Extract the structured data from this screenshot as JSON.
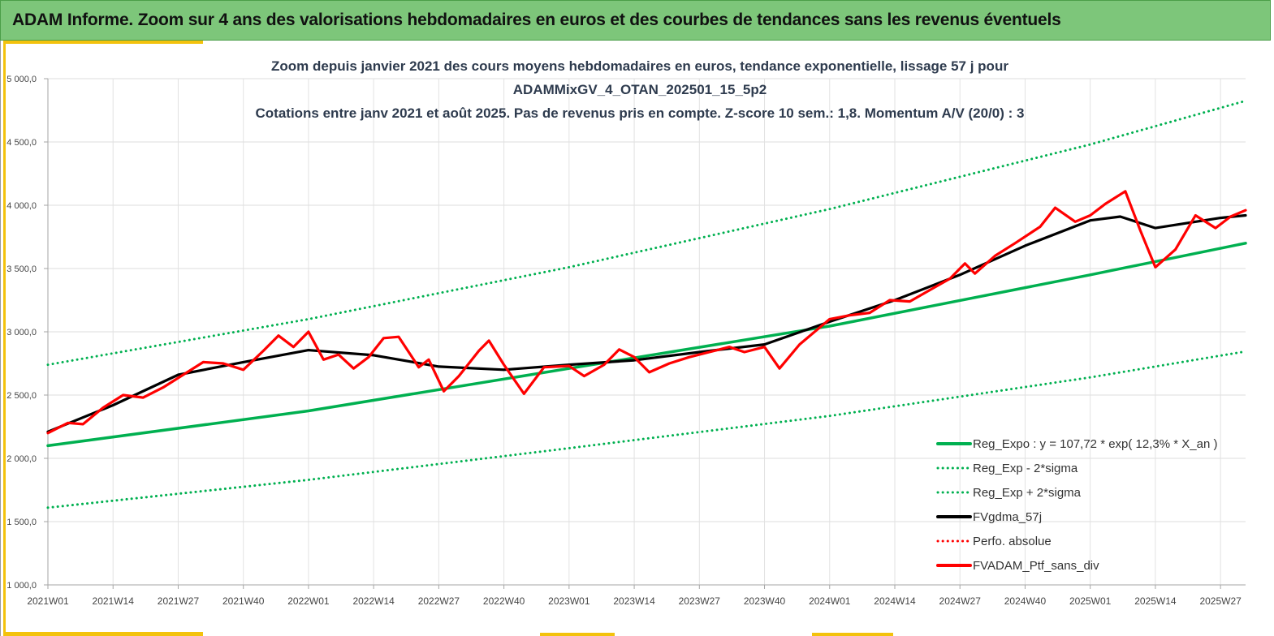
{
  "header": {
    "title": "ADAM Informe. Zoom sur 4 ans des valorisations hebdomadaires en euros et des courbes de tendances sans les revenus éventuels"
  },
  "chart_data": {
    "type": "line",
    "title_lines": [
      "Zoom depuis janvier 2021 des cours moyens hebdomadaires  en euros, tendance exponentielle, lissage 57 j pour",
      "ADAMMixGV_4_OTAN_202501_15_5p2",
      "Cotations  entre janv 2021 et août 2025. Pas de revenus pris en compte. Z-score 10 sem.: 1,8. Momentum A/V (20/0) : 3"
    ],
    "ylim": [
      1000,
      5000
    ],
    "y_ticks": [
      {
        "value": 1000,
        "label": "1 000,0"
      },
      {
        "value": 1500,
        "label": "1 500,0"
      },
      {
        "value": 2000,
        "label": "2 000,0"
      },
      {
        "value": 2500,
        "label": "2 500,0"
      },
      {
        "value": 3000,
        "label": "3 000,0"
      },
      {
        "value": 3500,
        "label": "3 500,0"
      },
      {
        "value": 4000,
        "label": "4 000,0"
      },
      {
        "value": 4500,
        "label": "4 500,0"
      },
      {
        "value": 5000,
        "label": "5 000,0"
      }
    ],
    "x_ticks": [
      "2021W01",
      "2021W14",
      "2021W27",
      "2021W40",
      "2022W01",
      "2022W14",
      "2022W27",
      "2022W40",
      "2023W01",
      "2023W14",
      "2023W27",
      "2023W40",
      "2024W01",
      "2024W14",
      "2024W27",
      "2024W40",
      "2025W01",
      "2025W14",
      "2025W27"
    ],
    "grid": true,
    "legend_position": "bottom-right",
    "series": [
      {
        "name": "Reg_Expo : y = 107,72 * exp( 12,3% *  X_an )",
        "color": "#00b050",
        "style": "solid",
        "points": [
          [
            "2021W01",
            2100
          ],
          [
            "2022W01",
            2375
          ],
          [
            "2023W01",
            2710
          ],
          [
            "2024W01",
            3045
          ],
          [
            "2025W01",
            3450
          ],
          [
            "2025W32",
            3700
          ]
        ]
      },
      {
        "name": "Reg_Exp - 2*sigma",
        "color": "#00b050",
        "style": "dotted",
        "points": [
          [
            "2021W01",
            1610
          ],
          [
            "2022W01",
            1830
          ],
          [
            "2023W01",
            2080
          ],
          [
            "2024W01",
            2335
          ],
          [
            "2025W01",
            2640
          ],
          [
            "2025W32",
            2845
          ]
        ]
      },
      {
        "name": "Reg_Exp + 2*sigma",
        "color": "#00b050",
        "style": "dotted",
        "points": [
          [
            "2021W01",
            2740
          ],
          [
            "2022W01",
            3100
          ],
          [
            "2023W01",
            3510
          ],
          [
            "2024W01",
            3970
          ],
          [
            "2025W01",
            4480
          ],
          [
            "2025W32",
            4825
          ]
        ]
      },
      {
        "name": "FVgdma_57j",
        "color": "#000000",
        "style": "solid",
        "points": [
          [
            "2021W01",
            2210
          ],
          [
            "2021W14",
            2420
          ],
          [
            "2021W27",
            2660
          ],
          [
            "2021W40",
            2760
          ],
          [
            "2022W01",
            2855
          ],
          [
            "2022W14",
            2815
          ],
          [
            "2022W27",
            2725
          ],
          [
            "2022W40",
            2700
          ],
          [
            "2023W01",
            2740
          ],
          [
            "2023W14",
            2775
          ],
          [
            "2023W27",
            2840
          ],
          [
            "2023W40",
            2900
          ],
          [
            "2024W01",
            3080
          ],
          [
            "2024W14",
            3250
          ],
          [
            "2024W27",
            3450
          ],
          [
            "2024W40",
            3680
          ],
          [
            "2025W01",
            3880
          ],
          [
            "2025W07",
            3910
          ],
          [
            "2025W14",
            3820
          ],
          [
            "2025W27",
            3900
          ],
          [
            "2025W32",
            3920
          ]
        ]
      },
      {
        "name": "Perfo. absolue",
        "color": "#ff0000",
        "style": "dotted",
        "points": []
      },
      {
        "name": "FVADAM_Ptf_sans_div",
        "color": "#ff0000",
        "style": "solid",
        "points": [
          [
            "2021W01",
            2200
          ],
          [
            "2021W05",
            2280
          ],
          [
            "2021W08",
            2270
          ],
          [
            "2021W12",
            2400
          ],
          [
            "2021W16",
            2500
          ],
          [
            "2021W20",
            2480
          ],
          [
            "2021W24",
            2560
          ],
          [
            "2021W28",
            2660
          ],
          [
            "2021W32",
            2760
          ],
          [
            "2021W36",
            2750
          ],
          [
            "2021W40",
            2700
          ],
          [
            "2021W44",
            2850
          ],
          [
            "2021W47",
            2970
          ],
          [
            "2021W50",
            2880
          ],
          [
            "2022W01",
            3000
          ],
          [
            "2022W04",
            2780
          ],
          [
            "2022W07",
            2820
          ],
          [
            "2022W10",
            2710
          ],
          [
            "2022W13",
            2800
          ],
          [
            "2022W16",
            2950
          ],
          [
            "2022W19",
            2960
          ],
          [
            "2022W23",
            2720
          ],
          [
            "2022W25",
            2780
          ],
          [
            "2022W28",
            2530
          ],
          [
            "2022W31",
            2650
          ],
          [
            "2022W35",
            2850
          ],
          [
            "2022W37",
            2930
          ],
          [
            "2022W40",
            2740
          ],
          [
            "2022W44",
            2510
          ],
          [
            "2022W48",
            2720
          ],
          [
            "2023W01",
            2730
          ],
          [
            "2023W04",
            2650
          ],
          [
            "2023W08",
            2740
          ],
          [
            "2023W11",
            2860
          ],
          [
            "2023W14",
            2800
          ],
          [
            "2023W17",
            2680
          ],
          [
            "2023W21",
            2750
          ],
          [
            "2023W25",
            2800
          ],
          [
            "2023W29",
            2840
          ],
          [
            "2023W33",
            2880
          ],
          [
            "2023W36",
            2840
          ],
          [
            "2023W40",
            2880
          ],
          [
            "2023W43",
            2710
          ],
          [
            "2023W47",
            2900
          ],
          [
            "2024W01",
            3100
          ],
          [
            "2024W05",
            3130
          ],
          [
            "2024W09",
            3150
          ],
          [
            "2024W13",
            3250
          ],
          [
            "2024W17",
            3240
          ],
          [
            "2024W21",
            3330
          ],
          [
            "2024W25",
            3420
          ],
          [
            "2024W28",
            3540
          ],
          [
            "2024W30",
            3460
          ],
          [
            "2024W34",
            3600
          ],
          [
            "2024W38",
            3700
          ],
          [
            "2024W43",
            3830
          ],
          [
            "2024W46",
            3980
          ],
          [
            "2024W50",
            3870
          ],
          [
            "2025W01",
            3920
          ],
          [
            "2025W04",
            4010
          ],
          [
            "2025W08",
            4110
          ],
          [
            "2025W11",
            3800
          ],
          [
            "2025W14",
            3510
          ],
          [
            "2025W18",
            3650
          ],
          [
            "2025W22",
            3920
          ],
          [
            "2025W26",
            3820
          ],
          [
            "2025W29",
            3910
          ],
          [
            "2025W32",
            3960
          ]
        ]
      }
    ]
  }
}
